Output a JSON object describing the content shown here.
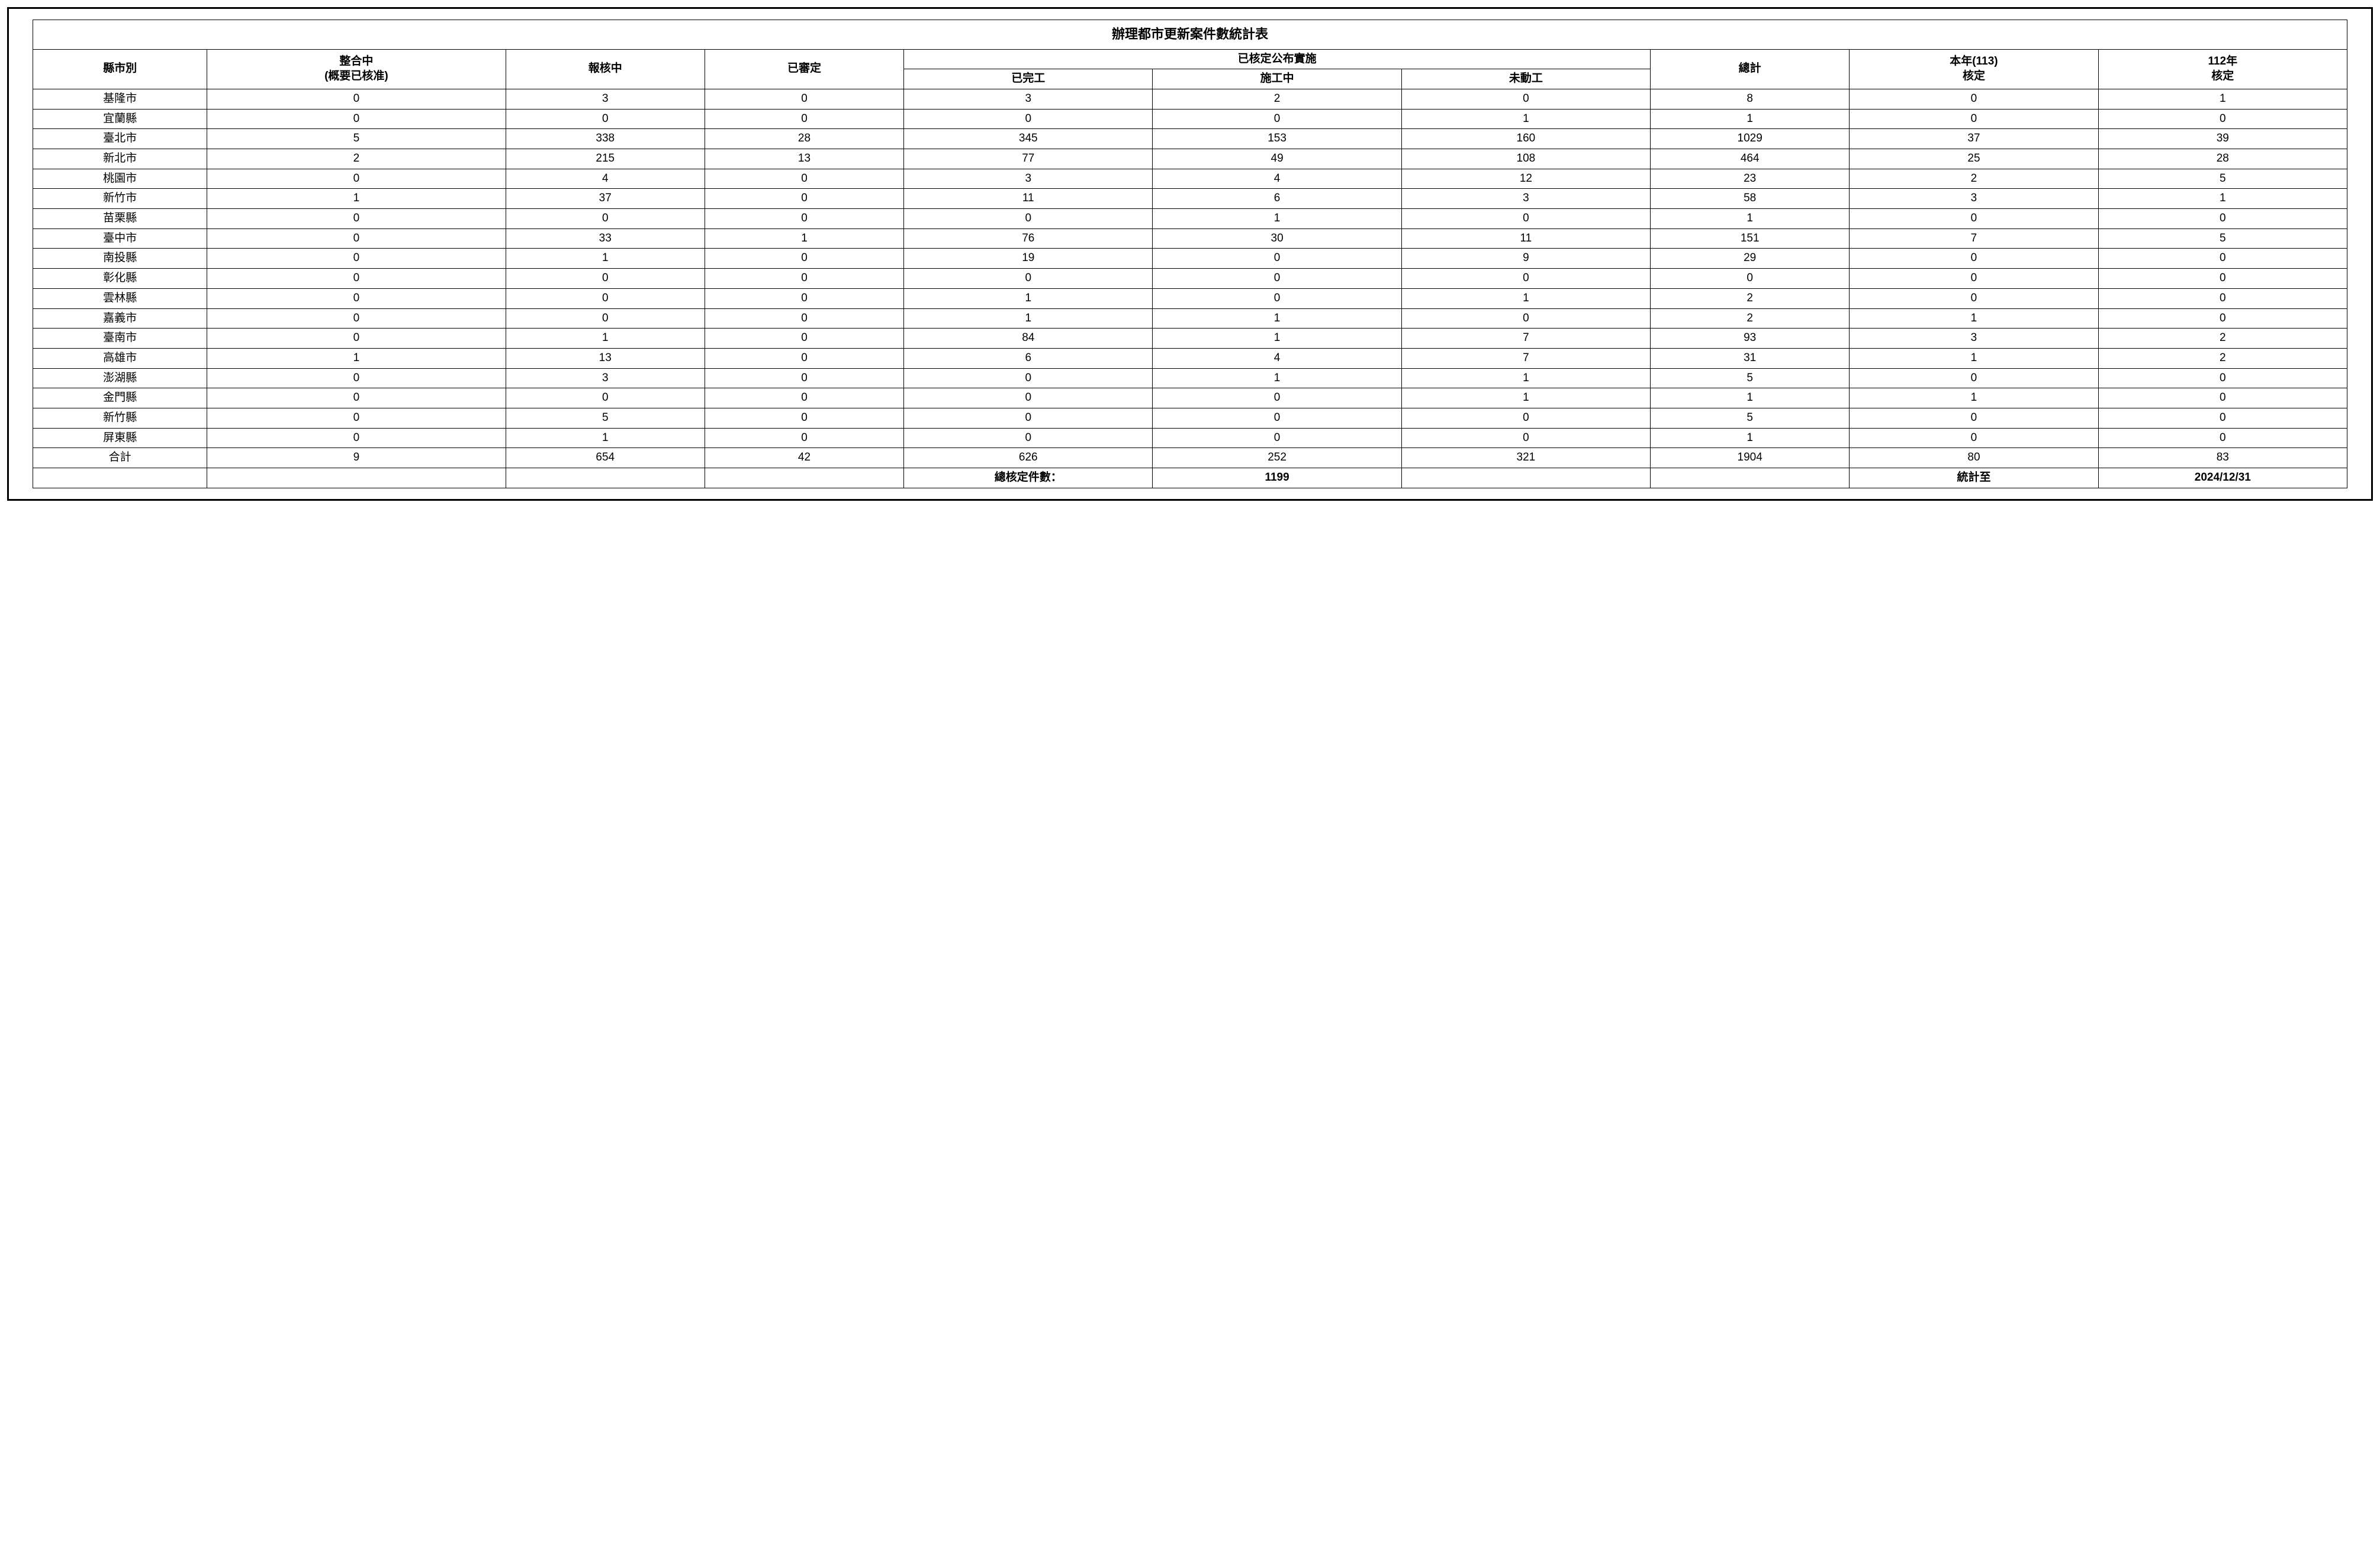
{
  "table": {
    "title": "辦理都市更新案件數統計表",
    "headers": {
      "county": "縣市別",
      "integrating": "整合中\n(概要已核准)",
      "reporting": "報核中",
      "approved": "已審定",
      "implemented_group": "已核定公布實施",
      "completed": "已完工",
      "construction": "施工中",
      "notstarted": "未動工",
      "total": "總計",
      "thisyear": "本年(113)核定",
      "lastyear": "112年核定"
    },
    "rows": [
      {
        "county": "基隆市",
        "integrating": "0",
        "reporting": "3",
        "approved": "0",
        "completed": "3",
        "construction": "2",
        "notstarted": "0",
        "total": "8",
        "thisyear": "0",
        "lastyear": "1"
      },
      {
        "county": "宜蘭縣",
        "integrating": "0",
        "reporting": "0",
        "approved": "0",
        "completed": "0",
        "construction": "0",
        "notstarted": "1",
        "total": "1",
        "thisyear": "0",
        "lastyear": "0"
      },
      {
        "county": "臺北市",
        "integrating": "5",
        "reporting": "338",
        "approved": "28",
        "completed": "345",
        "construction": "153",
        "notstarted": "160",
        "total": "1029",
        "thisyear": "37",
        "lastyear": "39"
      },
      {
        "county": "新北市",
        "integrating": "2",
        "reporting": "215",
        "approved": "13",
        "completed": "77",
        "construction": "49",
        "notstarted": "108",
        "total": "464",
        "thisyear": "25",
        "lastyear": "28"
      },
      {
        "county": "桃園市",
        "integrating": "0",
        "reporting": "4",
        "approved": "0",
        "completed": "3",
        "construction": "4",
        "notstarted": "12",
        "total": "23",
        "thisyear": "2",
        "lastyear": "5"
      },
      {
        "county": "新竹市",
        "integrating": "1",
        "reporting": "37",
        "approved": "0",
        "completed": "11",
        "construction": "6",
        "notstarted": "3",
        "total": "58",
        "thisyear": "3",
        "lastyear": "1"
      },
      {
        "county": "苗栗縣",
        "integrating": "0",
        "reporting": "0",
        "approved": "0",
        "completed": "0",
        "construction": "1",
        "notstarted": "0",
        "total": "1",
        "thisyear": "0",
        "lastyear": "0"
      },
      {
        "county": "臺中市",
        "integrating": "0",
        "reporting": "33",
        "approved": "1",
        "completed": "76",
        "construction": "30",
        "notstarted": "11",
        "total": "151",
        "thisyear": "7",
        "lastyear": "5"
      },
      {
        "county": "南投縣",
        "integrating": "0",
        "reporting": "1",
        "approved": "0",
        "completed": "19",
        "construction": "0",
        "notstarted": "9",
        "total": "29",
        "thisyear": "0",
        "lastyear": "0"
      },
      {
        "county": "彰化縣",
        "integrating": "0",
        "reporting": "0",
        "approved": "0",
        "completed": "0",
        "construction": "0",
        "notstarted": "0",
        "total": "0",
        "thisyear": "0",
        "lastyear": "0"
      },
      {
        "county": "雲林縣",
        "integrating": "0",
        "reporting": "0",
        "approved": "0",
        "completed": "1",
        "construction": "0",
        "notstarted": "1",
        "total": "2",
        "thisyear": "0",
        "lastyear": "0"
      },
      {
        "county": "嘉義市",
        "integrating": "0",
        "reporting": "0",
        "approved": "0",
        "completed": "1",
        "construction": "1",
        "notstarted": "0",
        "total": "2",
        "thisyear": "1",
        "lastyear": "0"
      },
      {
        "county": "臺南市",
        "integrating": "0",
        "reporting": "1",
        "approved": "0",
        "completed": "84",
        "construction": "1",
        "notstarted": "7",
        "total": "93",
        "thisyear": "3",
        "lastyear": "2"
      },
      {
        "county": "高雄市",
        "integrating": "1",
        "reporting": "13",
        "approved": "0",
        "completed": "6",
        "construction": "4",
        "notstarted": "7",
        "total": "31",
        "thisyear": "1",
        "lastyear": "2"
      },
      {
        "county": "澎湖縣",
        "integrating": "0",
        "reporting": "3",
        "approved": "0",
        "completed": "0",
        "construction": "1",
        "notstarted": "1",
        "total": "5",
        "thisyear": "0",
        "lastyear": "0"
      },
      {
        "county": "金門縣",
        "integrating": "0",
        "reporting": "0",
        "approved": "0",
        "completed": "0",
        "construction": "0",
        "notstarted": "1",
        "total": "1",
        "thisyear": "1",
        "lastyear": "0"
      },
      {
        "county": "新竹縣",
        "integrating": "0",
        "reporting": "5",
        "approved": "0",
        "completed": "0",
        "construction": "0",
        "notstarted": "0",
        "total": "5",
        "thisyear": "0",
        "lastyear": "0"
      },
      {
        "county": "屏東縣",
        "integrating": "0",
        "reporting": "1",
        "approved": "0",
        "completed": "0",
        "construction": "0",
        "notstarted": "0",
        "total": "1",
        "thisyear": "0",
        "lastyear": "0"
      }
    ],
    "totals": {
      "county": "合計",
      "integrating": "9",
      "reporting": "654",
      "approved": "42",
      "completed": "626",
      "construction": "252",
      "notstarted": "321",
      "total": "1904",
      "thisyear": "80",
      "lastyear": "83"
    },
    "footer": {
      "total_approved_label": "總核定件數：",
      "total_approved_value": "1199",
      "stat_to_label": "統計至",
      "stat_to_date": "2024/12/31"
    }
  }
}
